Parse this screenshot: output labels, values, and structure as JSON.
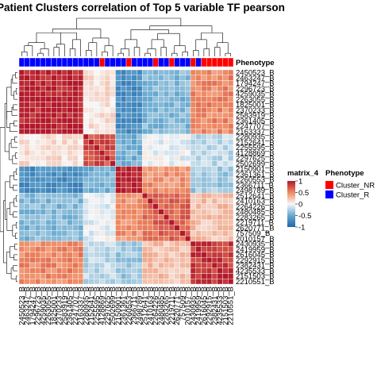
{
  "chart_data": {
    "type": "heatmap",
    "title": "Patient Clusters correlation of Top 5 variable TF pearson",
    "annotation_label": "Phenotype",
    "row_labels": [
      "2450523_B",
      "2463247_B",
      "1794247_B",
      "2296723_B",
      "4259035_B",
      "2263055_B",
      "1825001_B",
      "2370233_B",
      "2583919_B",
      "2361405_B",
      "2247707_B",
      "2163337_B",
      "2280935_B",
      "2152641_B",
      "2255595_B",
      "4128869_B",
      "2297625_B",
      "2502699_B",
      "2150901_B",
      "2361361_B",
      "2260553_B",
      "2366711_B",
      "2498789_B",
      "2512641_B",
      "2410163_B",
      "2264226_B",
      "2480485_B",
      "2283265_B",
      "2219711_B",
      "2620771_B",
      "757509_B",
      "2010157_B",
      "2430935_B",
      "2419959_B",
      "2616045_B",
      "2292915_B",
      "2382431_B",
      "4235533_B",
      "2151503_B",
      "2210551_B"
    ],
    "row_phenotype": [
      "Cluster_R",
      "Cluster_R",
      "Cluster_R",
      "Cluster_R",
      "Cluster_R",
      "Cluster_R",
      "Cluster_R",
      "Cluster_R",
      "Cluster_R",
      "Cluster_R",
      "Cluster_R",
      "Cluster_R",
      "Cluster_R",
      "Cluster_R",
      "Cluster_R",
      "Cluster_NR",
      "Cluster_R",
      "Cluster_R",
      "Cluster_R",
      "Cluster_R",
      "Cluster_NR",
      "Cluster_R",
      "Cluster_R",
      "Cluster_R",
      "Cluster_R",
      "Cluster_NR",
      "Cluster_R",
      "Cluster_R",
      "Cluster_NR",
      "Cluster_R",
      "Cluster_R",
      "Cluster_R",
      "Cluster_NR",
      "Cluster_R",
      "Cluster_NR",
      "Cluster_NR",
      "Cluster_NR",
      "Cluster_NR",
      "Cluster_NR",
      "Cluster_NR"
    ],
    "column_labels": [
      "2450523_B",
      "2463247_B",
      "1794247_B",
      "2296723_B",
      "4259035_B",
      "2263055_B",
      "1825001_B",
      "2370233_B",
      "2583919_B",
      "2361405_B",
      "2247707_B",
      "2163337_B",
      "2280935_B",
      "2152641_B",
      "2255595_B",
      "4128869_B",
      "2297625_B",
      "2502699_B",
      "2150901_B",
      "2361361_B",
      "2260553_B",
      "2366711_B",
      "2498789_B",
      "2512641_B",
      "2410163_B",
      "2264226_B",
      "2480485_B",
      "2283265_B",
      "2219711_B",
      "2620771_B",
      "757509_B",
      "2010157_B",
      "2430935_B",
      "2419959_B",
      "2616045_B",
      "2292915_B",
      "2382431_B",
      "4235533_B",
      "2151503_B",
      "2210551_B"
    ],
    "col_phenotype": [
      "Cluster_R",
      "Cluster_R",
      "Cluster_R",
      "Cluster_R",
      "Cluster_R",
      "Cluster_R",
      "Cluster_R",
      "Cluster_R",
      "Cluster_R",
      "Cluster_R",
      "Cluster_R",
      "Cluster_R",
      "Cluster_R",
      "Cluster_R",
      "Cluster_R",
      "Cluster_NR",
      "Cluster_R",
      "Cluster_R",
      "Cluster_R",
      "Cluster_R",
      "Cluster_NR",
      "Cluster_R",
      "Cluster_R",
      "Cluster_R",
      "Cluster_R",
      "Cluster_NR",
      "Cluster_R",
      "Cluster_R",
      "Cluster_NR",
      "Cluster_R",
      "Cluster_R",
      "Cluster_R",
      "Cluster_NR",
      "Cluster_R",
      "Cluster_NR",
      "Cluster_NR",
      "Cluster_NR",
      "Cluster_NR",
      "Cluster_NR",
      "Cluster_NR"
    ],
    "groups": [
      0,
      0,
      0,
      0,
      0,
      0,
      0,
      0,
      0,
      0,
      0,
      0,
      1,
      1,
      1,
      1,
      1,
      1,
      2,
      2,
      2,
      2,
      2,
      3,
      3,
      3,
      3,
      3,
      3,
      3,
      3,
      3,
      4,
      4,
      4,
      4,
      4,
      4,
      4,
      4
    ],
    "group_correlation": [
      [
        0.95,
        0.1,
        -0.7,
        -0.4,
        0.5
      ],
      [
        0.1,
        0.75,
        -0.45,
        -0.05,
        -0.2
      ],
      [
        -0.7,
        -0.45,
        0.95,
        0.45,
        -0.3
      ],
      [
        -0.4,
        -0.05,
        0.45,
        0.65,
        0.25
      ],
      [
        0.5,
        -0.2,
        -0.3,
        0.25,
        0.85
      ]
    ],
    "color_scale": {
      "name": "matrix_4",
      "breaks": [
        1,
        0.5,
        0,
        -0.5,
        -1
      ],
      "break_labels": [
        "1",
        "0.5",
        "0",
        "-0.5",
        "-1"
      ],
      "colors": [
        "#b2182b",
        "#ef8a62",
        "#f7f7f7",
        "#67a9cf",
        "#2166ac"
      ]
    },
    "phenotype_legend": {
      "title": "Phenotype",
      "items": [
        {
          "label": "Cluster_NR",
          "color": "#ff0000"
        },
        {
          "label": "Cluster_R",
          "color": "#0000ff"
        }
      ]
    }
  }
}
